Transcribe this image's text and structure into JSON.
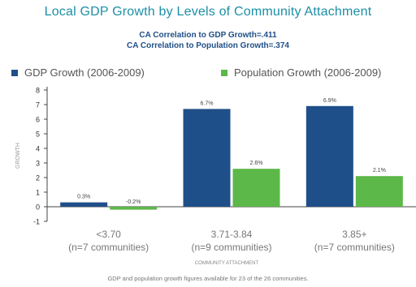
{
  "chart_data": {
    "type": "bar",
    "title": "Local GDP Growth by Levels of Community Attachment",
    "subtitles": [
      "CA Correlation to GDP Growth=.411",
      "CA Correlation to Population Growth=.374"
    ],
    "categories": [
      "<3.70",
      "3.71-3.84",
      "3.85+"
    ],
    "category_notes": [
      "(n=7 communities)",
      "(n=9 communities)",
      "(n=7 communities)"
    ],
    "series": [
      {
        "name": "GDP Growth (2006-2009)",
        "color": "#1f4f88",
        "values": [
          0.3,
          6.7,
          6.9
        ],
        "labels": [
          "0.3%",
          "6.7%",
          "6.9%"
        ]
      },
      {
        "name": "Population Growth (2006-2009)",
        "color": "#5cb848",
        "values": [
          -0.2,
          2.6,
          2.1
        ],
        "labels": [
          "-0.2%",
          "2.6%",
          "2.1%"
        ]
      }
    ],
    "xlabel": "COMMUNITY ATTACHMENT",
    "ylabel": "GROWTH",
    "ylim": [
      -1,
      8
    ],
    "yticks": [
      -1,
      0,
      1,
      2,
      3,
      4,
      5,
      6,
      7,
      8
    ],
    "grid": false,
    "legend": "top",
    "footnote": "GDP and population growth figures available for 23 of the 26 communities."
  }
}
